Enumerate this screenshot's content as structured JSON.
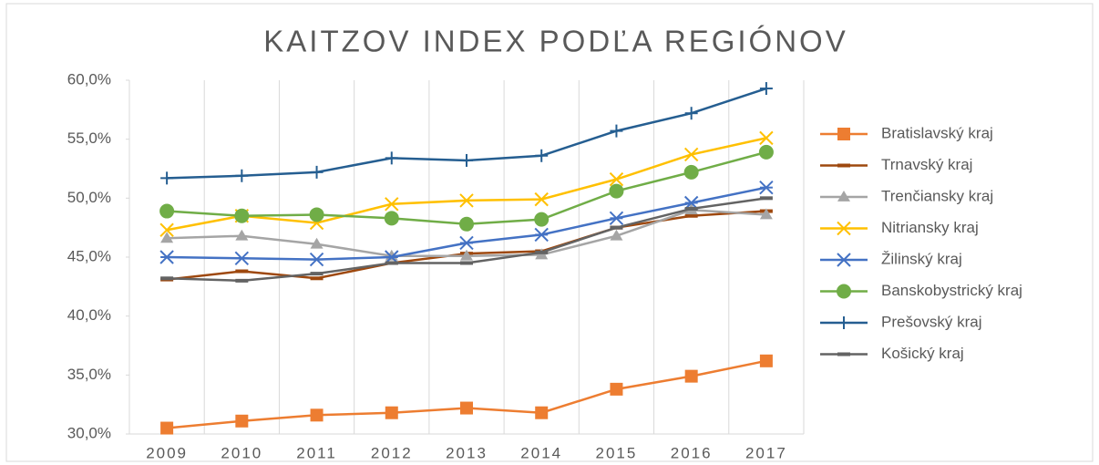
{
  "chart_data": {
    "type": "line",
    "title": "KAITZOV INDEX PODĽA REGIÓNOV",
    "categories": [
      "2009",
      "2010",
      "2011",
      "2012",
      "2013",
      "2014",
      "2015",
      "2016",
      "2017"
    ],
    "ylim": [
      30,
      60
    ],
    "yticks": [
      {
        "value": 30,
        "label": "30,0%"
      },
      {
        "value": 35,
        "label": "35,0%"
      },
      {
        "value": 40,
        "label": "40,0%"
      },
      {
        "value": 45,
        "label": "45,0%"
      },
      {
        "value": 50,
        "label": "50,0%"
      },
      {
        "value": 55,
        "label": "55,0%"
      },
      {
        "value": 60,
        "label": "60,0%"
      }
    ],
    "grid": "x",
    "legend": "right",
    "series": [
      {
        "name": "Bratislavský kraj",
        "color": "#ed7d31",
        "marker": "square",
        "values": [
          30.5,
          31.1,
          31.6,
          31.8,
          32.2,
          31.8,
          33.8,
          34.9,
          36.2
        ]
      },
      {
        "name": "Trnavský kraj",
        "color": "#9e480e",
        "marker": "dash",
        "values": [
          43.1,
          43.8,
          43.2,
          44.5,
          45.3,
          45.5,
          47.5,
          48.5,
          48.9
        ]
      },
      {
        "name": "Trenčiansky kraj",
        "color": "#a5a5a5",
        "marker": "triangle",
        "values": [
          46.6,
          46.8,
          46.1,
          45.1,
          45.1,
          45.2,
          46.8,
          49.0,
          48.6
        ]
      },
      {
        "name": "Nitriansky kraj",
        "color": "#ffc000",
        "marker": "x",
        "values": [
          47.3,
          48.5,
          47.9,
          49.5,
          49.8,
          49.9,
          51.6,
          53.7,
          55.1
        ]
      },
      {
        "name": "Žilinský kraj",
        "color": "#4472c4",
        "marker": "asterisk",
        "values": [
          45.0,
          44.9,
          44.8,
          45.0,
          46.2,
          46.9,
          48.3,
          49.6,
          50.9
        ]
      },
      {
        "name": "Banskobystrický kraj",
        "color": "#70ad47",
        "marker": "circle",
        "values": [
          48.9,
          48.5,
          48.6,
          48.3,
          47.8,
          48.2,
          50.6,
          52.2,
          53.9
        ]
      },
      {
        "name": "Prešovský kraj",
        "color": "#255e91",
        "marker": "plus",
        "values": [
          51.7,
          51.9,
          52.2,
          53.4,
          53.2,
          53.6,
          55.7,
          57.2,
          59.3
        ]
      },
      {
        "name": "Košický kraj",
        "color": "#636363",
        "marker": "dash",
        "values": [
          43.2,
          43.0,
          43.6,
          44.5,
          44.5,
          45.4,
          47.5,
          49.1,
          50.0
        ]
      }
    ]
  }
}
